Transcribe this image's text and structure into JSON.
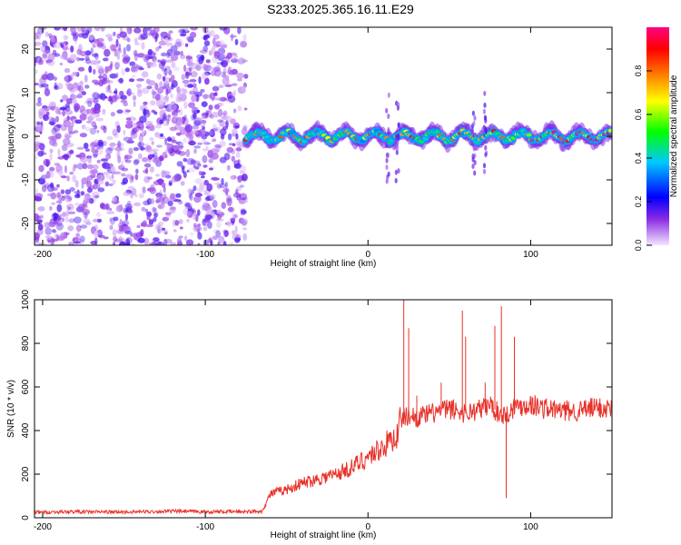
{
  "title": "S233.2025.365.16.11.E29",
  "chart_data": [
    {
      "type": "heatmap",
      "xlabel": "Height of straight line (km)",
      "ylabel": "Frequency (Hz)",
      "xlim": [
        -205,
        150
      ],
      "ylim": [
        -25,
        25
      ],
      "xticks": [
        -200,
        -100,
        0,
        100
      ],
      "yticks": [
        -20,
        -10,
        0,
        10,
        20
      ],
      "colorbar": {
        "label": "Normalized spectral amplitude",
        "range": [
          0,
          1
        ],
        "ticks": [
          0.0,
          0.2,
          0.4,
          0.6,
          0.8
        ],
        "tick_labels": [
          "0.0",
          "0.2",
          "0.4",
          "0.6",
          "0.8"
        ],
        "colors": [
          "#f2e6ff",
          "#8a2be2",
          "#0000ff",
          "#00c8ff",
          "#00ff00",
          "#ffff00",
          "#ff7f00",
          "#ff0000",
          "#ff0080"
        ]
      },
      "regions": [
        {
          "x_range": [
            -205,
            -75
          ],
          "description_level": 0.1
        },
        {
          "x_range": [
            -75,
            150
          ],
          "band_center_hz": 0,
          "band_level": 0.9
        }
      ],
      "spikes_x": [
        12,
        18,
        65,
        72
      ],
      "grid": false
    },
    {
      "type": "line",
      "xlabel": "Height of straight line (km)",
      "ylabel": "SNR (10 * v/v)",
      "xlim": [
        -205,
        150
      ],
      "ylim": [
        0,
        1000
      ],
      "xticks": [
        -200,
        -100,
        0,
        100
      ],
      "yticks": [
        0,
        200,
        400,
        600,
        800,
        1000
      ],
      "color": "#e8312a",
      "x": [
        -205,
        -180,
        -150,
        -120,
        -100,
        -80,
        -65,
        -60,
        -50,
        -40,
        -30,
        -20,
        -10,
        0,
        10,
        18,
        20,
        25,
        30,
        40,
        50,
        60,
        70,
        75,
        80,
        85,
        90,
        100,
        110,
        120,
        130,
        140,
        150
      ],
      "y": [
        25,
        28,
        26,
        30,
        27,
        28,
        30,
        110,
        130,
        160,
        180,
        200,
        230,
        280,
        330,
        380,
        450,
        470,
        460,
        480,
        500,
        480,
        500,
        520,
        480,
        470,
        510,
        520,
        500,
        490,
        490,
        505,
        500
      ],
      "spikes": [
        {
          "x": 22,
          "y": 1000
        },
        {
          "x": 25,
          "y": 870
        },
        {
          "x": 30,
          "y": 560
        },
        {
          "x": 45,
          "y": 620
        },
        {
          "x": 58,
          "y": 950
        },
        {
          "x": 60,
          "y": 830
        },
        {
          "x": 72,
          "y": 620
        },
        {
          "x": 78,
          "y": 880
        },
        {
          "x": 82,
          "y": 970
        },
        {
          "x": 85,
          "y": 90
        },
        {
          "x": 90,
          "y": 830
        }
      ],
      "grid": false
    }
  ]
}
